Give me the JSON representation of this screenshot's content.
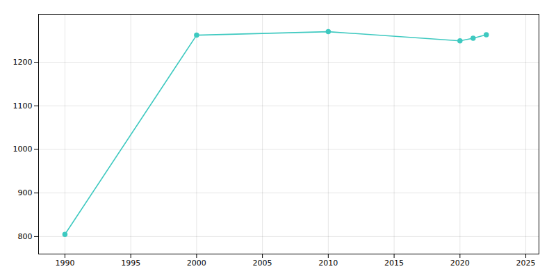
{
  "chart_data": {
    "type": "line",
    "x": [
      1990,
      2000,
      2010,
      2020,
      2021,
      2022
    ],
    "values": [
      805,
      1262,
      1270,
      1249,
      1255,
      1263
    ],
    "color": "#3ec9c0",
    "marker": "circle",
    "xlim": [
      1988,
      2026
    ],
    "ylim": [
      760,
      1310
    ],
    "xticks": [
      1990,
      1995,
      2000,
      2005,
      2010,
      2015,
      2020,
      2025
    ],
    "yticks": [
      800,
      900,
      1000,
      1100,
      1200
    ],
    "grid": true
  }
}
